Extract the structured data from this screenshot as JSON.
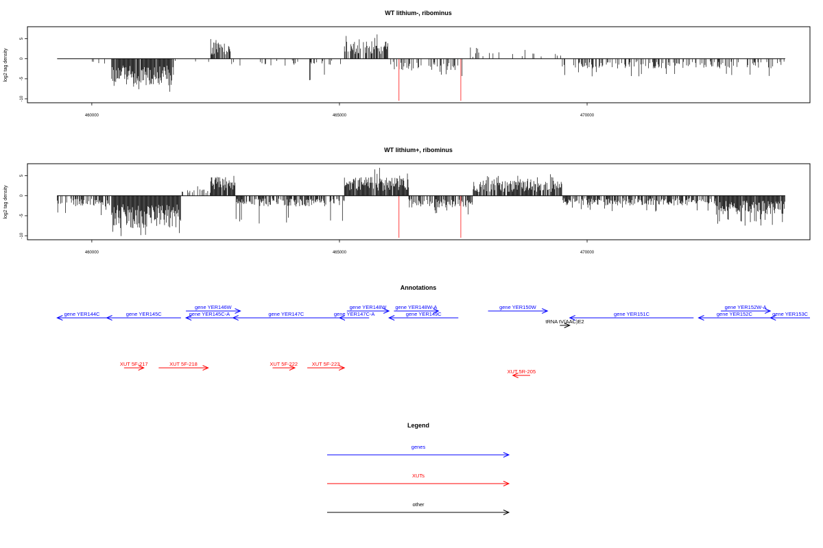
{
  "colors": {
    "gene": "#0000ff",
    "xut": "#ff0000",
    "other": "#000000",
    "highlight": "#ff5c5c",
    "bar": "#000000"
  },
  "chart_data": [
    {
      "type": "bar",
      "title": "WT lithium-, ribominus",
      "ylabel": "log2 tag density",
      "xlim": [
        458700,
        474500
      ],
      "ylim": [
        -11,
        8
      ],
      "xticks": [
        460000,
        465000,
        470000
      ],
      "xtick_labels": [
        "460000",
        "465000",
        "470000"
      ],
      "yticks": [
        5,
        0,
        -5,
        -10
      ],
      "ytick_labels": [
        "5",
        "0",
        "-5",
        "-10"
      ],
      "baseline": [
        459300,
        474000
      ],
      "segments": [
        {
          "x": [
            459300,
            460400
          ],
          "avg": -1.2,
          "max": 2.0,
          "density": 0.08
        },
        {
          "x": [
            460400,
            461650
          ],
          "avg": -4.8,
          "max": 8.5,
          "density": 0.95
        },
        {
          "x": [
            461650,
            462400
          ],
          "avg": -0.6,
          "max": 2.5,
          "density": 0.05
        },
        {
          "x": [
            462400,
            462800
          ],
          "avg": 3.0,
          "max": 5.0,
          "density": 0.8
        },
        {
          "x": [
            462800,
            465100
          ],
          "avg": -1.3,
          "max": 5.5,
          "density": 0.12
        },
        {
          "x": [
            465100,
            466000
          ],
          "avg": 3.3,
          "max": 6.8,
          "density": 0.75
        },
        {
          "x": [
            466000,
            467500
          ],
          "avg": -2.2,
          "max": 4.5,
          "density": 0.3
        },
        {
          "x": [
            467500,
            469500
          ],
          "avg": 1.2,
          "max": 3.0,
          "density": 0.1
        },
        {
          "x": [
            469500,
            474000
          ],
          "avg": -1.8,
          "max": 4.5,
          "density": 0.35
        }
      ],
      "highlights": [
        {
          "x": 466200,
          "y": -10.5
        },
        {
          "x": 467450,
          "y": -10.5
        }
      ]
    },
    {
      "type": "bar",
      "title": "WT lithium+, ribominus",
      "ylabel": "log2 tag density",
      "xlim": [
        458700,
        474500
      ],
      "ylim": [
        -11,
        8
      ],
      "xticks": [
        460000,
        465000,
        470000
      ],
      "xtick_labels": [
        "460000",
        "465000",
        "470000"
      ],
      "yticks": [
        5,
        0,
        -5,
        -10
      ],
      "ytick_labels": [
        "5",
        "0",
        "-5",
        "-10"
      ],
      "baseline": [
        459300,
        474000
      ],
      "segments": [
        {
          "x": [
            459300,
            460400
          ],
          "avg": -2.0,
          "max": 5.0,
          "density": 0.55
        },
        {
          "x": [
            460400,
            461800
          ],
          "avg": -6.0,
          "max": 10.2,
          "density": 1.0
        },
        {
          "x": [
            461800,
            462400
          ],
          "avg": 1.2,
          "max": 3.0,
          "density": 0.25
        },
        {
          "x": [
            462400,
            462900
          ],
          "avg": 3.5,
          "max": 6.0,
          "density": 0.9
        },
        {
          "x": [
            462900,
            465100
          ],
          "avg": -2.0,
          "max": 7.0,
          "density": 0.6
        },
        {
          "x": [
            465100,
            466400
          ],
          "avg": 3.5,
          "max": 7.0,
          "density": 0.95
        },
        {
          "x": [
            466400,
            467700
          ],
          "avg": -2.2,
          "max": 5.0,
          "density": 0.6
        },
        {
          "x": [
            467700,
            469500
          ],
          "avg": 2.8,
          "max": 5.5,
          "density": 0.85
        },
        {
          "x": [
            469500,
            472600
          ],
          "avg": -1.8,
          "max": 4.0,
          "density": 0.7
        },
        {
          "x": [
            472600,
            474000
          ],
          "avg": -3.5,
          "max": 7.5,
          "density": 0.95
        }
      ],
      "highlights": [
        {
          "x": 466200,
          "y": -10.5
        },
        {
          "x": 467450,
          "y": -10.5
        }
      ]
    }
  ],
  "annotations": {
    "title": "Annotations",
    "xlim": [
      458700,
      474500
    ],
    "features": [
      {
        "label": "gene YER144C",
        "type": "gene",
        "start": 459300,
        "end": 460300,
        "strand": "-",
        "row": "mid"
      },
      {
        "label": "gene YER145C",
        "type": "gene",
        "start": 460300,
        "end": 461800,
        "strand": "-",
        "row": "mid"
      },
      {
        "label": "gene YER146W",
        "type": "gene",
        "start": 461900,
        "end": 463000,
        "strand": "+",
        "row": "top"
      },
      {
        "label": "gene YER145C-A",
        "type": "gene",
        "start": 461900,
        "end": 462850,
        "strand": "-",
        "row": "mid"
      },
      {
        "label": "gene YER147C",
        "type": "gene",
        "start": 462850,
        "end": 465000,
        "strand": "-",
        "row": "mid"
      },
      {
        "label": "gene YER148W",
        "type": "gene",
        "start": 465150,
        "end": 466000,
        "strand": "+",
        "row": "top"
      },
      {
        "label": "gene YER147C-A",
        "type": "gene",
        "start": 465000,
        "end": 465600,
        "strand": "-",
        "row": "mid"
      },
      {
        "label": "gene YER148W-A",
        "type": "gene",
        "start": 466100,
        "end": 467000,
        "strand": "+",
        "row": "top"
      },
      {
        "label": "gene YER149C",
        "type": "gene",
        "start": 466000,
        "end": 467400,
        "strand": "-",
        "row": "mid"
      },
      {
        "label": "gene YER150W",
        "type": "gene",
        "start": 468000,
        "end": 469200,
        "strand": "+",
        "row": "top"
      },
      {
        "label": "tRNA tV(AAC)E2",
        "type": "other",
        "start": 469450,
        "end": 469650,
        "strand": "+",
        "row": "low"
      },
      {
        "label": "gene YER151C",
        "type": "gene",
        "start": 469650,
        "end": 472150,
        "strand": "-",
        "row": "mid"
      },
      {
        "label": "gene YER152W-A",
        "type": "gene",
        "start": 472700,
        "end": 473700,
        "strand": "+",
        "row": "top"
      },
      {
        "label": "gene YER152C",
        "type": "gene",
        "start": 472250,
        "end": 473700,
        "strand": "-",
        "row": "mid"
      },
      {
        "label": "gene YER153C",
        "type": "gene",
        "start": 473700,
        "end": 474500,
        "strand": "-",
        "row": "mid"
      },
      {
        "label": "XUT 5F-217",
        "type": "xut",
        "start": 460650,
        "end": 461050,
        "strand": "+",
        "row": "xut"
      },
      {
        "label": "XUT 5F-218",
        "type": "xut",
        "start": 461350,
        "end": 462350,
        "strand": "+",
        "row": "xut"
      },
      {
        "label": "XUT 5F-222",
        "type": "xut",
        "start": 463650,
        "end": 464100,
        "strand": "+",
        "row": "xut"
      },
      {
        "label": "XUT 5F-223",
        "type": "xut",
        "start": 464350,
        "end": 465100,
        "strand": "+",
        "row": "xut"
      },
      {
        "label": "XUT 5R-205",
        "type": "xut",
        "start": 468500,
        "end": 468850,
        "strand": "-",
        "row": "xut2"
      }
    ]
  },
  "legend": {
    "title": "Legend",
    "items": [
      {
        "label": "genes",
        "type": "gene"
      },
      {
        "label": "XUTs",
        "type": "xut"
      },
      {
        "label": "other",
        "type": "other"
      }
    ]
  }
}
